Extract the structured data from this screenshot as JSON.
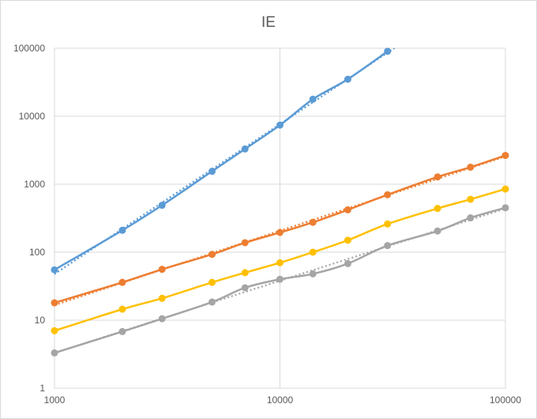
{
  "chart_data": {
    "type": "line",
    "title": "IE",
    "xlabel": "",
    "ylabel": "",
    "x_scale": "log",
    "y_scale": "log",
    "xlim": [
      1000,
      100000
    ],
    "ylim": [
      1,
      100000
    ],
    "x_ticks": [
      "1000",
      "10000",
      "100000"
    ],
    "y_ticks": [
      "1",
      "10",
      "100",
      "1000",
      "10000",
      "100000"
    ],
    "grid": true,
    "legend": "none",
    "series": [
      {
        "color": "#5b9bd5",
        "x": [
          1000,
          2000,
          3000,
          5000,
          7000,
          10000,
          14000,
          20000,
          30000
        ],
        "values": [
          55,
          210,
          490,
          1550,
          3300,
          7400,
          17800,
          35000,
          90000
        ],
        "trendline": "dotted"
      },
      {
        "color": "#ed7d31",
        "x": [
          1000,
          2000,
          3000,
          5000,
          7000,
          10000,
          14000,
          20000,
          30000,
          50000,
          70000,
          100000
        ],
        "values": [
          18,
          36,
          56,
          93,
          138,
          195,
          275,
          420,
          700,
          1280,
          1780,
          2650
        ],
        "trendline": "dotted"
      },
      {
        "color": "#ffc000",
        "x": [
          1000,
          2000,
          3000,
          5000,
          7000,
          10000,
          14000,
          20000,
          30000,
          50000,
          70000,
          100000
        ],
        "values": [
          7,
          14.5,
          21,
          36,
          50,
          70,
          100,
          150,
          260,
          440,
          600,
          850
        ],
        "trendline": "none"
      },
      {
        "color": "#a5a5a5",
        "x": [
          1000,
          2000,
          3000,
          5000,
          7000,
          10000,
          14000,
          20000,
          30000,
          50000,
          70000,
          100000
        ],
        "values": [
          3.3,
          6.8,
          10.5,
          18.5,
          30,
          40,
          48,
          68,
          125,
          205,
          320,
          450
        ],
        "trendline": "dotted"
      }
    ]
  }
}
